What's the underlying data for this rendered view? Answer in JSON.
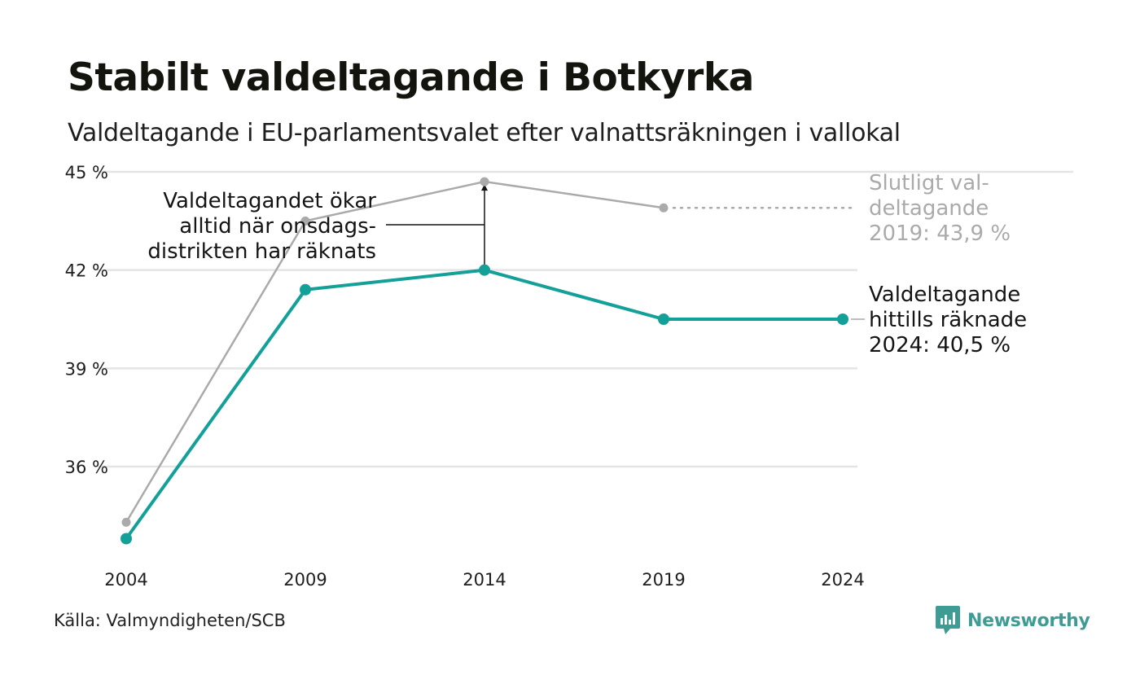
{
  "title": "Stabilt valdeltagande i Botkyrka",
  "subtitle": "Valdeltagande i EU-parlamentsvalet efter valnattsräkningen i vallokal",
  "source": "Källa: Valmyndigheten/SCB",
  "brand": {
    "name": "Newsworthy",
    "icon": "newsworthy-logo-icon"
  },
  "colors": {
    "counted": "#13a098",
    "final": "#aaaaaa",
    "grid": "#e4e4e4",
    "text": "#1e1e1e",
    "brand": "#3d9c93"
  },
  "chart_data": {
    "type": "line",
    "x": [
      2004,
      2009,
      2014,
      2019,
      2024
    ],
    "ylim": [
      33,
      45
    ],
    "yticks": [
      36,
      39,
      42,
      45
    ],
    "ytick_labels": [
      "36 %",
      "39 %",
      "42 %",
      "45 %"
    ],
    "xtick_labels": [
      "2004",
      "2009",
      "2014",
      "2019",
      "2024"
    ],
    "grid": true,
    "series": [
      {
        "key": "final",
        "values": [
          34.3,
          43.5,
          44.7,
          43.9,
          null
        ]
      },
      {
        "key": "counted",
        "values": [
          33.8,
          41.4,
          42.0,
          40.5,
          40.5
        ]
      }
    ],
    "annotations": {
      "gap_note": [
        "Valdeltagandet ökar",
        "alltid när onsdags-",
        "distrikten har räknats"
      ],
      "final_label": [
        "Slutligt val-",
        "deltagande",
        "2019: 43,9 %"
      ],
      "counted_label": [
        "Valdeltagande",
        "hittills räknade",
        "2024: 40,5 %"
      ]
    }
  }
}
